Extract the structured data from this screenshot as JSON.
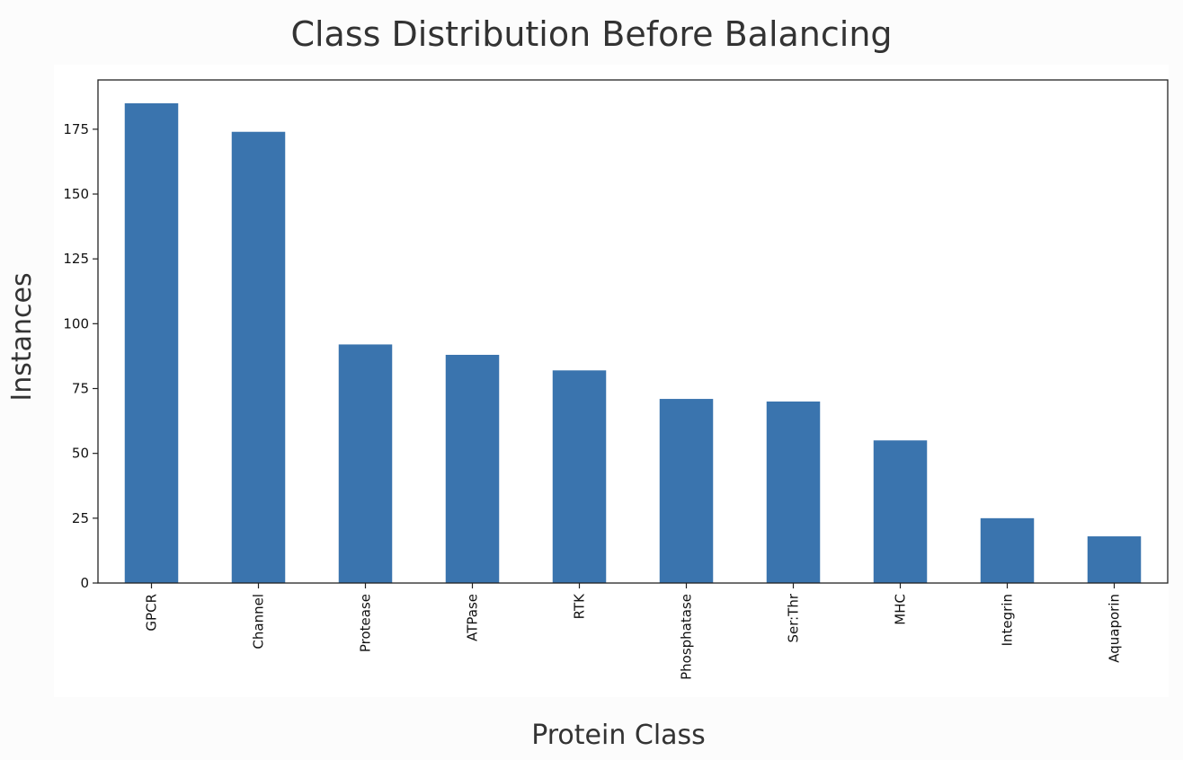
{
  "chart_data": {
    "type": "bar",
    "title": "Class Distribution Before Balancing",
    "xlabel": "Protein Class",
    "ylabel": "Instances",
    "categories": [
      "GPCR",
      "Channel",
      "Protease",
      "ATPase",
      "RTK",
      "Phosphatase",
      "Ser:Thr",
      "MHC",
      "Integrin",
      "Aquaporin"
    ],
    "values": [
      185,
      174,
      92,
      88,
      82,
      71,
      70,
      55,
      25,
      18
    ],
    "yticks": [
      0,
      25,
      50,
      75,
      100,
      125,
      150,
      175
    ],
    "ylim": [
      0,
      194
    ],
    "bar_color": "#3a74ae",
    "grid": false,
    "legend": "none"
  }
}
